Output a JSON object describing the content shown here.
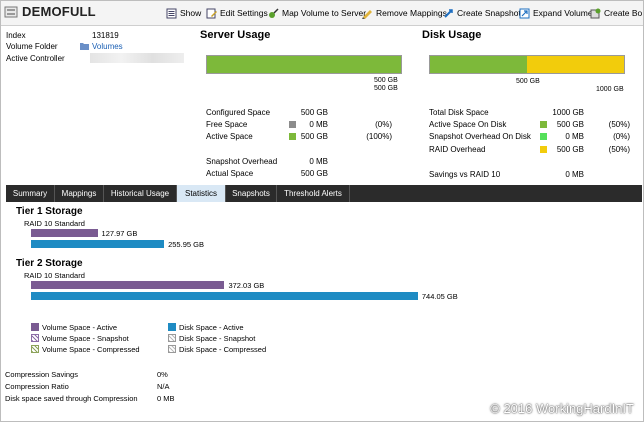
{
  "window": {
    "title": "DEMOFULL"
  },
  "toolbar": [
    {
      "label": "Show",
      "icon": "show-icon"
    },
    {
      "label": "Edit Settings",
      "icon": "edit-settings-icon"
    },
    {
      "label": "Map Volume to Server",
      "icon": "map-volume-icon"
    },
    {
      "label": "Remove Mappings",
      "icon": "remove-mappings-icon"
    },
    {
      "label": "Create Snapshot",
      "icon": "create-snapshot-icon"
    },
    {
      "label": "Expand Volume",
      "icon": "expand-volume-icon"
    },
    {
      "label": "Create Bo",
      "icon": "create-boot-icon"
    }
  ],
  "info": {
    "index_label": "Index",
    "index_value": "131819",
    "folder_label": "Volume Folder",
    "folder_value": "Volumes",
    "controller_label": "Active Controller"
  },
  "server_usage": {
    "title": "Server Usage",
    "bar_axis_top": "500 GB",
    "bar_axis_bottom": "500 GB",
    "active_fraction": 1.0,
    "rows": [
      {
        "label": "Configured Space",
        "value": "500 GB",
        "pct": ""
      },
      {
        "label": "Free Space",
        "value": "0 MB",
        "pct": "(0%)"
      },
      {
        "label": "Active Space",
        "value": "500 GB",
        "pct": "(100%)"
      },
      {
        "label": "Snapshot Overhead",
        "value": "0 MB",
        "pct": ""
      },
      {
        "label": "Actual Space",
        "value": "500 GB",
        "pct": ""
      }
    ]
  },
  "disk_usage": {
    "title": "Disk Usage",
    "bar_axis_mid": "500 GB",
    "bar_axis_end": "1000 GB",
    "active_fraction": 0.5,
    "raid_fraction": 0.5,
    "rows": [
      {
        "label": "Total Disk Space",
        "value": "1000 GB",
        "pct": ""
      },
      {
        "label": "Active Space On Disk",
        "value": "500 GB",
        "pct": "(50%)"
      },
      {
        "label": "Snapshot Overhead On Disk",
        "value": "0 MB",
        "pct": "(0%)"
      },
      {
        "label": "RAID Overhead",
        "value": "500 GB",
        "pct": "(50%)"
      },
      {
        "label": "Savings vs RAID 10",
        "value": "0 MB",
        "pct": ""
      }
    ]
  },
  "tabs": [
    {
      "label": "Summary",
      "active": false
    },
    {
      "label": "Mappings",
      "active": false
    },
    {
      "label": "Historical Usage",
      "active": false
    },
    {
      "label": "Statistics",
      "active": true
    },
    {
      "label": "Snapshots",
      "active": false
    },
    {
      "label": "Threshold Alerts",
      "active": false
    }
  ],
  "tiers": [
    {
      "title": "Tier 1 Storage",
      "raid": "RAID 10 Standard",
      "volume_label": "127.97 GB",
      "volume_value_gb": 127.97,
      "disk_label": "255.95 GB",
      "disk_value_gb": 255.95
    },
    {
      "title": "Tier 2 Storage",
      "raid": "RAID 10 Standard",
      "volume_label": "372.03 GB",
      "volume_value_gb": 372.03,
      "disk_label": "744.05 GB",
      "disk_value_gb": 744.05
    }
  ],
  "legend": [
    {
      "label": "Volume Space - Active",
      "style": "purple-solid"
    },
    {
      "label": "Disk Space - Active",
      "style": "blue-solid"
    },
    {
      "label": "Volume Space - Snapshot",
      "style": "purple-hatch"
    },
    {
      "label": "Disk Space - Snapshot",
      "style": "grey-hatch"
    },
    {
      "label": "Volume Space - Compressed",
      "style": "green-hatch"
    },
    {
      "label": "Disk Space - Compressed",
      "style": "grey-hatch"
    }
  ],
  "compression": [
    {
      "label": "Compression Savings",
      "value": "0%"
    },
    {
      "label": "Compression Ratio",
      "value": "N/A"
    },
    {
      "label": "Disk space saved through Compression",
      "value": "0 MB"
    }
  ],
  "watermark": "© 2016 WorkingHardInIT",
  "colors": {
    "green": "#7db93a",
    "yellow": "#f2cc0c",
    "purple": "#7a5b92",
    "blue": "#1e8bc3",
    "grey": "#8c8c8c",
    "tab_bar": "#2b2b2b",
    "tab_active": "#d9e8f5"
  }
}
